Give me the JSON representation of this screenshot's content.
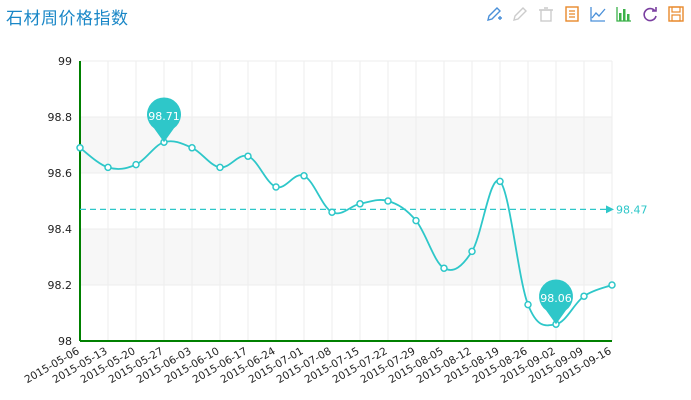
{
  "title": "石材周价格指数",
  "toolbar": {
    "items": [
      {
        "name": "mark-icon",
        "color": "#4a90d9"
      },
      {
        "name": "undo-mark-icon",
        "color": "#cccccc"
      },
      {
        "name": "clear-mark-icon",
        "color": "#cccccc"
      },
      {
        "name": "data-view-icon",
        "color": "#e8892b"
      },
      {
        "name": "line-chart-icon",
        "color": "#4a90d9"
      },
      {
        "name": "bar-chart-icon",
        "color": "#3cb24a"
      },
      {
        "name": "restore-icon",
        "color": "#7a3fa0"
      },
      {
        "name": "save-image-icon",
        "color": "#e8892b"
      }
    ]
  },
  "colors": {
    "line": "#2ec7c9",
    "axis": "#008000",
    "grid": "#eeeeee",
    "band": "#f7f7f7",
    "title": "#1a87c7"
  },
  "chart_data": {
    "type": "line",
    "title": "石材周价格指数",
    "xlabel": "",
    "ylabel": "",
    "ylim": [
      98,
      99
    ],
    "yticks": [
      "98",
      "98.2",
      "98.4",
      "98.6",
      "98.8",
      "99"
    ],
    "smooth": true,
    "grid": true,
    "categories": [
      "2015-05-06",
      "2015-05-13",
      "2015-05-20",
      "2015-05-27",
      "2015-06-03",
      "2015-06-10",
      "2015-06-17",
      "2015-06-24",
      "2015-07-01",
      "2015-07-08",
      "2015-07-15",
      "2015-07-22",
      "2015-07-29",
      "2015-08-05",
      "2015-08-12",
      "2015-08-19",
      "2015-08-26",
      "2015-09-02",
      "2015-09-09",
      "2015-09-16"
    ],
    "values": [
      98.69,
      98.62,
      98.63,
      98.71,
      98.69,
      98.62,
      98.66,
      98.55,
      98.59,
      98.46,
      98.49,
      98.5,
      98.43,
      98.26,
      98.32,
      98.57,
      98.13,
      98.06,
      98.16,
      98.2
    ],
    "mark_points": [
      {
        "type": "max",
        "label": "98.71",
        "index": 3
      },
      {
        "type": "min",
        "label": "98.06",
        "index": 17
      }
    ],
    "mark_line": {
      "type": "average",
      "value": 98.47,
      "label": "98.47"
    }
  }
}
